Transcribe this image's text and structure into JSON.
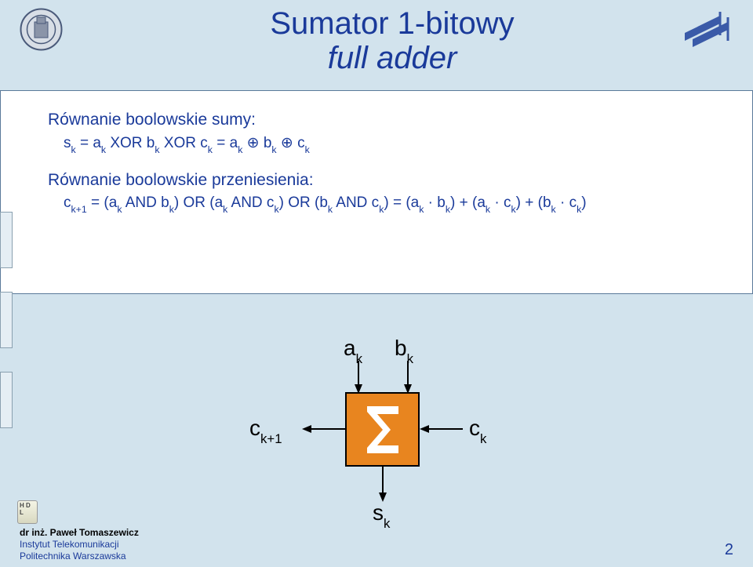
{
  "title": {
    "line1": "Sumator 1-bitowy",
    "line2": "full adder"
  },
  "equations": {
    "sum_heading": "Równanie boolowskie sumy:",
    "sum_body_html": "s<sub>k</sub> = a<sub>k</sub> XOR b<sub>k</sub> XOR c<sub>k</sub> = a<sub>k</sub> ⊕ b<sub>k</sub> ⊕ c<sub>k</sub>",
    "carry_heading": "Równanie boolowskie przeniesienia:",
    "carry_body_html": "c<sub>k+1</sub> = (a<sub>k</sub> AND b<sub>k</sub>) OR (a<sub>k</sub> AND c<sub>k</sub>) OR (b<sub>k</sub> AND c<sub>k</sub>) = (a<sub>k</sub> · b<sub>k</sub>) + (a<sub>k</sub> · c<sub>k</sub>) + (b<sub>k</sub> · c<sub>k</sub>)"
  },
  "diagram": {
    "inputs_top": {
      "a": "a<sub>k</sub>",
      "b": "b<sub>k</sub>"
    },
    "input_right": "c<sub>k</sub>",
    "output_left": "c<sub>k+1</sub>",
    "output_bottom": "s<sub>k</sub>",
    "box_symbol": "Σ",
    "box_fill": "#e8851f",
    "box_border": "#000000"
  },
  "footer": {
    "name": "dr inż. Paweł Tomaszewicz",
    "line2": "Instytut Telekomunikacji",
    "line3": "Politechnika Warszawska"
  },
  "page_number": "2",
  "hdl_badge": "H\nD\nL",
  "colors": {
    "page_bg": "#d2e3ed",
    "title_color": "#1a3a9a",
    "content_bg": "#ffffff",
    "content_border": "#5a7a9a"
  }
}
